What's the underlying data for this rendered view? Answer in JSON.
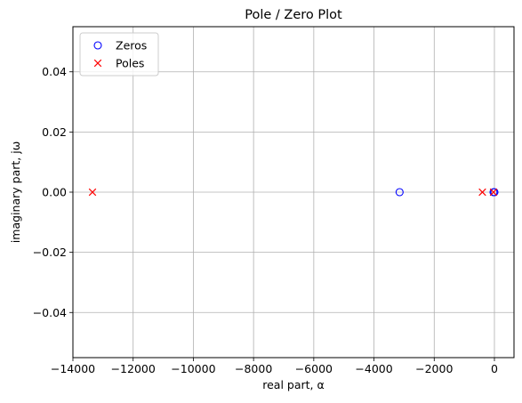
{
  "chart_data": {
    "type": "scatter",
    "title": "Pole / Zero Plot",
    "xlabel": "real part, α",
    "ylabel": "imaginary part, jω",
    "xlim": [
      -14000,
      650
    ],
    "ylim": [
      -0.055,
      0.055
    ],
    "xticks": [
      -14000,
      -12000,
      -10000,
      -8000,
      -6000,
      -4000,
      -2000,
      0
    ],
    "xtick_labels": [
      "−14000",
      "−12000",
      "−10000",
      "−8000",
      "−6000",
      "−4000",
      "−2000",
      "0"
    ],
    "yticks": [
      -0.04,
      -0.02,
      0.0,
      0.02,
      0.04
    ],
    "ytick_labels": [
      "−0.04",
      "−0.02",
      "0.00",
      "0.02",
      "0.04"
    ],
    "grid": true,
    "legend_position": "top-left",
    "series": [
      {
        "name": "Zeros",
        "marker": "circle-open",
        "color": "#0000ff",
        "points": [
          {
            "x": -3150,
            "y": 0
          },
          {
            "x": -30,
            "y": 0
          },
          {
            "x": 0,
            "y": 0
          }
        ]
      },
      {
        "name": "Poles",
        "marker": "x",
        "color": "#ff0000",
        "points": [
          {
            "x": -13350,
            "y": 0
          },
          {
            "x": -400,
            "y": 0
          },
          {
            "x": -30,
            "y": 0
          }
        ]
      }
    ]
  }
}
